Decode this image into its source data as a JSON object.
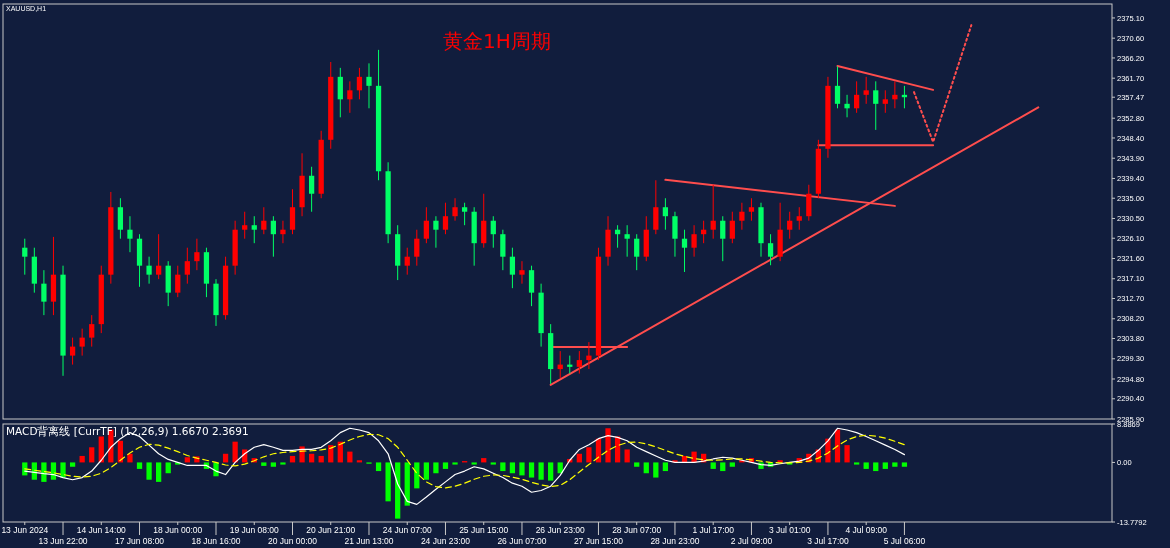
{
  "chart_data": [
    {
      "type": "candlestick",
      "title": "黄金1H周期",
      "subtitle": "XAUUSD,H1",
      "tick_labels": "y",
      "categories": [
        null,
        null,
        null,
        null,
        null,
        null,
        null,
        null,
        null,
        null,
        null,
        null,
        null,
        null,
        null,
        null,
        null,
        null,
        null,
        null,
        null,
        null,
        null,
        null,
        null,
        null,
        null,
        null,
        null,
        null,
        null,
        null,
        null,
        null,
        null,
        null,
        null,
        null,
        null,
        null,
        null,
        null,
        null,
        null,
        null,
        null,
        null,
        null,
        null,
        null,
        null,
        null,
        null,
        null,
        null,
        null,
        null,
        null,
        null,
        null,
        null,
        null,
        null,
        null,
        null,
        null,
        null,
        null,
        null,
        null,
        null,
        null,
        null,
        null,
        null,
        null,
        null,
        null,
        null,
        null,
        null,
        null,
        null,
        null,
        null,
        null,
        null,
        null,
        null,
        null,
        null,
        null,
        null,
        null,
        null,
        null,
        null,
        null,
        null,
        null,
        null,
        null,
        null,
        null,
        null,
        null,
        null,
        null,
        null,
        null,
        null,
        null,
        null,
        null
      ],
      "ohlc": [
        [
          2324,
          2326,
          2318,
          2322
        ],
        [
          2322,
          2324,
          2314,
          2316
        ],
        [
          2316,
          2319,
          2309,
          2312
        ],
        [
          2312,
          2326.4,
          2309,
          2318
        ],
        [
          2318,
          2320,
          2295.5,
          2300
        ],
        [
          2300,
          2304,
          2298,
          2302
        ],
        [
          2302,
          2306,
          2300,
          2304
        ],
        [
          2304,
          2309,
          2302,
          2307
        ],
        [
          2307,
          2320,
          2305,
          2318
        ],
        [
          2318,
          2336.4,
          2316,
          2333
        ],
        [
          2333,
          2335,
          2326,
          2328
        ],
        [
          2328,
          2331,
          2323,
          2326
        ],
        [
          2326,
          2327,
          2315.3,
          2320
        ],
        [
          2320,
          2322,
          2316,
          2318
        ],
        [
          2318,
          2327,
          2317,
          2320
        ],
        [
          2320,
          2321,
          2311,
          2314
        ],
        [
          2314,
          2320,
          2313,
          2318
        ],
        [
          2318,
          2324,
          2316,
          2321
        ],
        [
          2321,
          2326,
          2319,
          2323
        ],
        [
          2323,
          2324,
          2313,
          2316
        ],
        [
          2316,
          2317,
          2306.6,
          2309
        ],
        [
          2309,
          2322,
          2308,
          2320
        ],
        [
          2320,
          2330,
          2318,
          2328
        ],
        [
          2328,
          2332,
          2326,
          2329
        ],
        [
          2329,
          2331,
          2325,
          2328
        ],
        [
          2328,
          2333,
          2327,
          2330
        ],
        [
          2330,
          2331,
          2322,
          2327
        ],
        [
          2327,
          2330,
          2325,
          2328
        ],
        [
          2328,
          2337,
          2327,
          2333
        ],
        [
          2333,
          2345,
          2331,
          2340
        ],
        [
          2340,
          2342,
          2332,
          2336
        ],
        [
          2336,
          2350,
          2335,
          2348
        ],
        [
          2348,
          2365.3,
          2346,
          2362
        ],
        [
          2362,
          2364,
          2353,
          2357
        ],
        [
          2357,
          2361,
          2354,
          2359
        ],
        [
          2359,
          2364,
          2357,
          2362
        ],
        [
          2362,
          2365,
          2355,
          2360
        ],
        [
          2360,
          2368,
          2339,
          2341
        ],
        [
          2341,
          2343,
          2325,
          2327
        ],
        [
          2327,
          2329,
          2316.8,
          2320
        ],
        [
          2320,
          2324,
          2318,
          2322
        ],
        [
          2322,
          2328,
          2320,
          2326
        ],
        [
          2326,
          2333,
          2325,
          2330
        ],
        [
          2330,
          2331,
          2324,
          2328
        ],
        [
          2328,
          2334,
          2327,
          2331
        ],
        [
          2331,
          2335,
          2330,
          2333
        ],
        [
          2333,
          2334,
          2329,
          2332
        ],
        [
          2332,
          2333,
          2320,
          2325
        ],
        [
          2325,
          2336,
          2324,
          2330
        ],
        [
          2330,
          2331,
          2324,
          2327
        ],
        [
          2327,
          2328,
          2319,
          2322
        ],
        [
          2322,
          2324,
          2315,
          2318
        ],
        [
          2318,
          2321,
          2316,
          2319
        ],
        [
          2319,
          2320,
          2311,
          2314
        ],
        [
          2314,
          2316,
          2302,
          2305
        ],
        [
          2305,
          2307,
          2293.7,
          2297
        ],
        [
          2297,
          2301,
          2295,
          2298
        ],
        [
          2298,
          2300,
          2296,
          2297.5
        ],
        [
          2297.5,
          2301,
          2296,
          2299
        ],
        [
          2299,
          2303,
          2297,
          2300
        ],
        [
          2300,
          2324,
          2299,
          2322
        ],
        [
          2322,
          2331,
          2320,
          2328
        ],
        [
          2328,
          2329,
          2324,
          2327
        ],
        [
          2327,
          2329,
          2322,
          2326
        ],
        [
          2326,
          2327,
          2319,
          2322
        ],
        [
          2322,
          2331,
          2321,
          2328
        ],
        [
          2328,
          2339,
          2327,
          2333
        ],
        [
          2333,
          2335,
          2328,
          2331
        ],
        [
          2331,
          2332,
          2322,
          2326
        ],
        [
          2326,
          2328,
          2318.6,
          2324
        ],
        [
          2324,
          2329,
          2322,
          2327
        ],
        [
          2327,
          2330,
          2325,
          2328
        ],
        [
          2328,
          2338,
          2326,
          2330
        ],
        [
          2330,
          2331,
          2321,
          2326
        ],
        [
          2326,
          2332,
          2325,
          2330
        ],
        [
          2330,
          2334,
          2328,
          2332
        ],
        [
          2332,
          2335,
          2330,
          2333
        ],
        [
          2333,
          2334,
          2322,
          2325
        ],
        [
          2325,
          2327,
          2320.1,
          2322
        ],
        [
          2322,
          2334,
          2321,
          2328
        ],
        [
          2328,
          2332,
          2326,
          2330
        ],
        [
          2330,
          2333,
          2328,
          2331
        ],
        [
          2331,
          2338,
          2330,
          2336
        ],
        [
          2336,
          2348,
          2335,
          2346
        ],
        [
          2346,
          2362,
          2344,
          2360
        ],
        [
          2360,
          2364.3,
          2355,
          2356
        ],
        [
          2356,
          2358,
          2353,
          2355
        ],
        [
          2355,
          2361,
          2354,
          2358
        ],
        [
          2358,
          2362,
          2356,
          2359
        ],
        [
          2359,
          2361,
          2350.2,
          2356
        ],
        [
          2356,
          2359,
          2354,
          2357
        ],
        [
          2357,
          2361,
          2355,
          2358
        ],
        [
          2358,
          2360,
          2355,
          2357.47
        ],
        null,
        null,
        null,
        null,
        null,
        null,
        null,
        null,
        null,
        null,
        null,
        null,
        null,
        null,
        null,
        null,
        null,
        null,
        null,
        null,
        null
      ],
      "colors": [
        "#00ff66",
        "#00ff66",
        "#00ff66",
        "#ff0000",
        "#00ff66",
        "#ff0000",
        "#ff0000",
        "#ff0000",
        "#ff0000",
        "#ff0000",
        "#00ff66",
        "#00ff66",
        "#00ff66",
        "#00ff66",
        "#ff0000",
        "#00ff66",
        "#ff0000",
        "#ff0000",
        "#ff0000",
        "#00ff66",
        "#00ff66",
        "#ff0000",
        "#ff0000",
        "#ff0000",
        "#00ff66",
        "#ff0000",
        "#00ff66",
        "#ff0000",
        "#ff0000",
        "#ff0000",
        "#00ff66",
        "#ff0000",
        "#ff0000",
        "#00ff66",
        "#ff0000",
        "#ff0000",
        "#00ff66",
        "#00ff66",
        "#00ff66",
        "#00ff66",
        "#ff0000",
        "#ff0000",
        "#ff0000",
        "#00ff66",
        "#ff0000",
        "#ff0000",
        "#00ff66",
        "#00ff66",
        "#ff0000",
        "#00ff66",
        "#00ff66",
        "#00ff66",
        "#ff0000",
        "#00ff66",
        "#00ff66",
        "#00ff66",
        "#ff0000",
        "#00ff66",
        "#ff0000",
        "#ff0000",
        "#ff0000",
        "#ff0000",
        "#00ff66",
        "#00ff66",
        "#00ff66",
        "#ff0000",
        "#ff0000",
        "#00ff66",
        "#00ff66",
        "#00ff66",
        "#ff0000",
        "#ff0000",
        "#ff0000",
        "#00ff66",
        "#ff0000",
        "#ff0000",
        "#ff0000",
        "#00ff66",
        "#00ff66",
        "#ff0000",
        "#ff0000",
        "#ff0000",
        "#ff0000",
        "#ff0000",
        "#ff0000",
        "#00ff66",
        "#00ff66",
        "#ff0000",
        "#ff0000",
        "#00ff66",
        "#ff0000",
        "#ff0000",
        "#00ff66",
        null,
        null,
        null,
        null,
        null,
        null,
        null,
        null,
        null,
        null,
        null,
        null,
        null,
        null,
        null,
        null,
        null,
        null,
        null,
        null,
        null
      ],
      "series": [
        {
          "type": "line",
          "color": "#ff4d4d",
          "values": [
            null,
            null,
            null,
            null,
            null,
            null,
            null,
            null,
            null,
            null,
            null,
            null,
            null,
            null,
            null,
            null,
            null,
            null,
            null,
            null,
            null,
            null,
            null,
            null,
            null,
            null,
            null,
            null,
            null,
            null,
            null,
            null,
            null,
            null,
            null,
            null,
            null,
            null,
            null,
            null,
            null,
            null,
            null,
            null,
            null,
            null,
            null,
            null,
            null,
            null,
            null,
            null,
            null,
            null,
            null,
            2293.5,
            null,
            null,
            null,
            null,
            null,
            null,
            null,
            null,
            null,
            null,
            null,
            null,
            null,
            null,
            null,
            null,
            null,
            null,
            null,
            null,
            null,
            null,
            null,
            null,
            null,
            null,
            null,
            null,
            null,
            null,
            null,
            null,
            null,
            null,
            null,
            null,
            null,
            null,
            null,
            null,
            null,
            null,
            null,
            null,
            null,
            null,
            null,
            null,
            null,
            null,
            2355.2,
            null,
            null,
            null,
            null,
            null,
            null,
            null
          ]
        },
        {
          "type": "line",
          "color": "#ff4d4d",
          "values": [
            null,
            null,
            null,
            null,
            null,
            null,
            null,
            null,
            null,
            null,
            null,
            null,
            null,
            null,
            null,
            null,
            null,
            null,
            null,
            null,
            null,
            null,
            null,
            null,
            null,
            null,
            null,
            null,
            null,
            null,
            null,
            null,
            null,
            null,
            null,
            null,
            null,
            null,
            null,
            null,
            null,
            null,
            null,
            null,
            null,
            null,
            null,
            null,
            null,
            null,
            null,
            null,
            null,
            null,
            null,
            2301.9,
            null,
            null,
            null,
            null,
            null,
            null,
            null,
            2301.9,
            null,
            null,
            null,
            null,
            null,
            null,
            null,
            null,
            null,
            null,
            null,
            null,
            null,
            null,
            null,
            null,
            null,
            null,
            null,
            null,
            null,
            null,
            null,
            null,
            null,
            null,
            null,
            null,
            null,
            null,
            null,
            null,
            null,
            null,
            null,
            null,
            null,
            null,
            null,
            null,
            null,
            null,
            null,
            null,
            null,
            null,
            null,
            null,
            null,
            null
          ]
        },
        {
          "type": "line",
          "color": "#ff4d4d",
          "values": [
            null,
            null,
            null,
            null,
            null,
            null,
            null,
            null,
            null,
            null,
            null,
            null,
            null,
            null,
            null,
            null,
            null,
            null,
            null,
            null,
            null,
            null,
            null,
            null,
            null,
            null,
            null,
            null,
            null,
            null,
            null,
            null,
            null,
            null,
            null,
            null,
            null,
            null,
            null,
            null,
            null,
            null,
            null,
            null,
            null,
            null,
            null,
            null,
            null,
            null,
            null,
            null,
            null,
            null,
            null,
            null,
            null,
            null,
            null,
            null,
            null,
            null,
            null,
            null,
            null,
            null,
            null,
            2339.1,
            null,
            null,
            null,
            null,
            null,
            null,
            null,
            null,
            null,
            null,
            null,
            null,
            null,
            null,
            null,
            null,
            null,
            null,
            null,
            null,
            null,
            null,
            null,
            2333.3,
            null,
            null,
            null,
            null,
            null,
            null,
            null,
            null,
            null,
            null,
            null,
            null,
            null,
            null,
            null,
            null,
            null,
            null,
            null,
            null,
            null,
            null
          ]
        },
        {
          "type": "line",
          "color": "#ff4d4d",
          "values": [
            null,
            null,
            null,
            null,
            null,
            null,
            null,
            null,
            null,
            null,
            null,
            null,
            null,
            null,
            null,
            null,
            null,
            null,
            null,
            null,
            null,
            null,
            null,
            null,
            null,
            null,
            null,
            null,
            null,
            null,
            null,
            null,
            null,
            null,
            null,
            null,
            null,
            null,
            null,
            null,
            null,
            null,
            null,
            null,
            null,
            null,
            null,
            null,
            null,
            null,
            null,
            null,
            null,
            null,
            null,
            null,
            null,
            null,
            null,
            null,
            null,
            null,
            null,
            null,
            null,
            null,
            null,
            null,
            null,
            null,
            null,
            null,
            null,
            null,
            null,
            null,
            null,
            null,
            null,
            null,
            null,
            null,
            null,
            2346.8,
            null,
            null,
            null,
            null,
            null,
            null,
            null,
            null,
            null,
            null,
            null,
            2346.8,
            null,
            null,
            null,
            null,
            null,
            null,
            null,
            null,
            null,
            null,
            null,
            null,
            null,
            null,
            null,
            null,
            null,
            null
          ]
        },
        {
          "type": "line",
          "color": "#ff4d4d",
          "values": [
            null,
            null,
            null,
            null,
            null,
            null,
            null,
            null,
            null,
            null,
            null,
            null,
            null,
            null,
            null,
            null,
            null,
            null,
            null,
            null,
            null,
            null,
            null,
            null,
            null,
            null,
            null,
            null,
            null,
            null,
            null,
            null,
            null,
            null,
            null,
            null,
            null,
            null,
            null,
            null,
            null,
            null,
            null,
            null,
            null,
            null,
            null,
            null,
            null,
            null,
            null,
            null,
            null,
            null,
            null,
            null,
            null,
            null,
            null,
            null,
            null,
            null,
            null,
            null,
            null,
            null,
            null,
            null,
            null,
            null,
            null,
            null,
            null,
            null,
            null,
            null,
            null,
            null,
            null,
            null,
            null,
            null,
            null,
            null,
            null,
            2364.4,
            null,
            null,
            null,
            null,
            null,
            null,
            null,
            null,
            null,
            2359.1,
            null,
            null,
            null,
            null,
            null,
            null,
            null,
            null,
            null,
            null,
            null,
            null,
            null,
            null,
            null,
            null,
            null,
            null
          ]
        },
        {
          "type": "line",
          "color": "#ff4d4d",
          "line_style": "dotted",
          "values": [
            null,
            null,
            null,
            null,
            null,
            null,
            null,
            null,
            null,
            null,
            null,
            null,
            null,
            null,
            null,
            null,
            null,
            null,
            null,
            null,
            null,
            null,
            null,
            null,
            null,
            null,
            null,
            null,
            null,
            null,
            null,
            null,
            null,
            null,
            null,
            null,
            null,
            null,
            null,
            null,
            null,
            null,
            null,
            null,
            null,
            null,
            null,
            null,
            null,
            null,
            null,
            null,
            null,
            null,
            null,
            null,
            null,
            null,
            null,
            null,
            null,
            null,
            null,
            null,
            null,
            null,
            null,
            null,
            null,
            null,
            null,
            null,
            null,
            null,
            null,
            null,
            null,
            null,
            null,
            null,
            null,
            null,
            null,
            null,
            null,
            null,
            null,
            null,
            null,
            null,
            null,
            null,
            null,
            2358.6,
            null,
            2347.5,
            null,
            null,
            null,
            2373.5,
            null,
            null,
            null,
            null,
            null,
            null,
            null,
            null,
            null,
            null,
            null,
            null,
            null,
            null
          ]
        }
      ],
      "ylim": [
        2285.9,
        2378.2
      ],
      "yticks": [
        {
          "value": 2375.1,
          "label": "2375.10"
        },
        {
          "value": 2370.6,
          "label": "2370.60"
        },
        {
          "value": 2366.2,
          "label": "2366.20"
        },
        {
          "value": 2361.7,
          "label": "2361.70"
        },
        {
          "value": 2357.47,
          "label": "2357.47"
        },
        {
          "value": 2352.8,
          "label": "2352.80"
        },
        {
          "value": 2348.4,
          "label": "2348.40"
        },
        {
          "value": 2343.9,
          "label": "2343.90"
        },
        {
          "value": 2339.4,
          "label": "2339.40"
        },
        {
          "value": 2335,
          "label": "2335.00"
        },
        {
          "value": 2330.5,
          "label": "2330.50"
        },
        {
          "value": 2326.1,
          "label": "2326.10"
        },
        {
          "value": 2321.6,
          "label": "2321.60"
        },
        {
          "value": 2317.1,
          "label": "2317.10"
        },
        {
          "value": 2312.7,
          "label": "2312.70"
        },
        {
          "value": 2308.2,
          "label": "2308.20"
        },
        {
          "value": 2303.8,
          "label": "2303.80"
        },
        {
          "value": 2299.3,
          "label": "2299.30"
        },
        {
          "value": 2294.8,
          "label": "2294.80"
        },
        {
          "value": 2290.4,
          "label": "2290.40"
        },
        {
          "value": 2285.9,
          "label": "2285.90"
        }
      ]
    },
    {
      "type": "bar",
      "title": "MACD背离线 [CurrTF] (12,26,9) 1.6670 2.3691",
      "categories": [
        "13 Jun 2024",
        null,
        null,
        null,
        "13 Jun 22:00",
        null,
        null,
        null,
        "14 Jun 14:00",
        null,
        null,
        null,
        "17 Jun 08:00",
        null,
        null,
        null,
        "18 Jun 00:00",
        null,
        null,
        null,
        "18 Jun 16:00",
        null,
        null,
        null,
        "19 Jun 08:00",
        null,
        null,
        null,
        "20 Jun 00:00",
        null,
        null,
        null,
        "20 Jun 21:00",
        null,
        null,
        null,
        "21 Jun 13:00",
        null,
        null,
        null,
        "24 Jun 07:00",
        null,
        null,
        null,
        "24 Jun 23:00",
        null,
        null,
        null,
        "25 Jun 15:00",
        null,
        null,
        null,
        "26 Jun 07:00",
        null,
        null,
        null,
        "26 Jun 23:00",
        null,
        null,
        null,
        "27 Jun 15:00",
        null,
        null,
        null,
        "28 Jun 07:00",
        null,
        null,
        null,
        "28 Jun 23:00",
        null,
        null,
        null,
        "1 Jul 17:00",
        null,
        null,
        null,
        "2 Jul 09:00",
        null,
        null,
        null,
        "3 Jul 01:00",
        null,
        null,
        null,
        "3 Jul 17:00",
        null,
        null,
        null,
        "4 Jul 09:00",
        null,
        null,
        null,
        "5 Jul 06:00",
        null,
        null,
        null,
        null,
        null,
        null,
        null,
        null,
        null,
        null,
        null,
        null,
        null,
        null,
        null,
        null,
        null,
        null,
        null,
        null,
        null
      ],
      "series": [
        {
          "type": "bar",
          "values": [
            -3,
            -4,
            -4.5,
            -4,
            -3.5,
            -1,
            1.5,
            3.5,
            6,
            7.6,
            5,
            2,
            -1.5,
            -4,
            -4.5,
            -2.5,
            -0.5,
            1.2,
            1.4,
            -1.5,
            -3.2,
            2,
            4.8,
            3,
            1,
            -0.8,
            -1,
            -0.5,
            1.5,
            3.7,
            2,
            1.5,
            4,
            4.8,
            2.5,
            0.5,
            -0.3,
            -2,
            -9,
            -13,
            -10,
            -6,
            -4,
            -2.5,
            -1.5,
            -0.5,
            0.3,
            -0.5,
            1,
            -0.5,
            -2,
            -2.5,
            -3,
            -3.5,
            -4,
            -4.2,
            -2.5,
            0.8,
            2,
            3.5,
            5.5,
            7.9,
            6,
            3,
            -1,
            -2.5,
            -3.5,
            -2,
            0.5,
            1.5,
            2.5,
            2,
            -1.5,
            -2,
            -1,
            0.5,
            1,
            -1.5,
            -1,
            0.5,
            -0.5,
            1,
            2,
            3,
            5.5,
            7.6,
            4,
            -0.5,
            -1.5,
            -2,
            -1.5,
            -1,
            -1,
            null,
            null,
            null,
            null,
            null,
            null,
            null,
            null,
            null,
            null,
            null,
            null,
            null,
            null,
            null,
            null,
            null,
            null,
            null,
            null,
            null
          ],
          "colors": [
            "#00ff00",
            "#00ff00",
            "#00ff00",
            "#00ff00",
            "#00ff00",
            "#00ff00",
            "#ff0000",
            "#ff0000",
            "#ff0000",
            "#ff0000",
            "#ff0000",
            "#ff0000",
            "#00ff00",
            "#00ff00",
            "#00ff00",
            "#00ff00",
            "#00ff00",
            "#ff0000",
            "#ff0000",
            "#00ff00",
            "#00ff00",
            "#ff0000",
            "#ff0000",
            "#ff0000",
            "#ff0000",
            "#00ff00",
            "#00ff00",
            "#00ff00",
            "#ff0000",
            "#ff0000",
            "#ff0000",
            "#ff0000",
            "#ff0000",
            "#ff0000",
            "#ff0000",
            "#ff0000",
            "#00ff00",
            "#00ff00",
            "#00ff00",
            "#00ff00",
            "#00ff00",
            "#00ff00",
            "#00ff00",
            "#00ff00",
            "#00ff00",
            "#00ff00",
            "#ff0000",
            "#00ff00",
            "#ff0000",
            "#00ff00",
            "#00ff00",
            "#00ff00",
            "#00ff00",
            "#00ff00",
            "#00ff00",
            "#00ff00",
            "#00ff00",
            "#ff0000",
            "#ff0000",
            "#ff0000",
            "#ff0000",
            "#ff0000",
            "#ff0000",
            "#ff0000",
            "#00ff00",
            "#00ff00",
            "#00ff00",
            "#00ff00",
            "#ff0000",
            "#ff0000",
            "#ff0000",
            "#ff0000",
            "#00ff00",
            "#00ff00",
            "#00ff00",
            "#ff0000",
            "#ff0000",
            "#00ff00",
            "#00ff00",
            "#ff0000",
            "#00ff00",
            "#ff0000",
            "#ff0000",
            "#ff0000",
            "#ff0000",
            "#ff0000",
            "#ff0000",
            "#00ff00",
            "#00ff00",
            "#00ff00",
            "#00ff00",
            "#00ff00",
            "#00ff00",
            null,
            null,
            null,
            null,
            null,
            null,
            null,
            null,
            null,
            null,
            null,
            null,
            null,
            null,
            null,
            null,
            null,
            null,
            null,
            null,
            null
          ]
        },
        {
          "type": "line",
          "color": "#ffffff",
          "values": [
            -2,
            -2.3,
            -2.6,
            -2.8,
            -3.5,
            -4,
            -3.5,
            -2,
            0.5,
            3.5,
            5.5,
            6.9,
            6,
            4,
            2,
            0.7,
            0,
            -0.7,
            -0.7,
            -0.7,
            -2,
            -2.8,
            0,
            2,
            3.5,
            4.1,
            3.5,
            2.8,
            2.8,
            3,
            3,
            3.5,
            5,
            6.9,
            7.9,
            7.5,
            6.9,
            5,
            2,
            -5,
            -9,
            -9.7,
            -8,
            -6.2,
            -4.5,
            -2.8,
            -2,
            -1,
            -1.5,
            -2.5,
            -3.5,
            -4.8,
            -5.5,
            -6.9,
            -6.5,
            -5.5,
            -3,
            0.5,
            3,
            4.1,
            5.5,
            6.2,
            5.8,
            5,
            3.5,
            2.5,
            1.5,
            0.5,
            0,
            0,
            0,
            0.3,
            0.8,
            1.2,
            1,
            0.5,
            0,
            -0.5,
            -0.7,
            -0.3,
            0,
            0.3,
            1,
            2.8,
            5,
            7.9,
            7.5,
            6.9,
            6,
            5,
            4,
            3,
            1.8,
            null,
            null,
            null,
            null,
            null,
            null,
            null,
            null,
            null,
            null,
            null,
            null,
            null,
            null,
            null,
            null,
            null,
            null,
            null,
            null,
            null
          ]
        },
        {
          "type": "line",
          "color": "#ffff00",
          "line_style": "dashed",
          "values": [
            -1.5,
            -1.8,
            -2.1,
            -2.4,
            -2.8,
            -3.2,
            -3.4,
            -3.2,
            -2.5,
            -1.2,
            0.5,
            2.2,
            3.5,
            4.2,
            4,
            3.3,
            2.5,
            1.6,
            1,
            0.5,
            0,
            -0.6,
            -0.8,
            -0.4,
            0.4,
            1.3,
            2,
            2.3,
            2.5,
            2.6,
            2.7,
            2.9,
            3.3,
            4.2,
            5.2,
            6,
            6.5,
            6.4,
            5.5,
            3.5,
            0.5,
            -2.5,
            -4.5,
            -5.6,
            -5.9,
            -5.5,
            -4.8,
            -3.9,
            -3.2,
            -2.9,
            -3,
            -3.4,
            -3.9,
            -4.6,
            -5.2,
            -5.6,
            -5.3,
            -4,
            -2.2,
            -0.5,
            1.2,
            2.8,
            3.9,
            4.6,
            4.7,
            4.3,
            3.6,
            2.8,
            2,
            1.4,
            0.9,
            0.6,
            0.5,
            0.6,
            0.8,
            0.8,
            0.6,
            0.3,
            0,
            -0.1,
            -0.1,
            0,
            0.3,
            1,
            2.2,
            3.8,
            5.2,
            6,
            6.3,
            6.1,
            5.6,
            4.9,
            4.1,
            null,
            null,
            null,
            null,
            null,
            null,
            null,
            null,
            null,
            null,
            null,
            null,
            null,
            null,
            null,
            null,
            null,
            null,
            null,
            null,
            null
          ]
        }
      ],
      "ylim": [
        -13.7792,
        8.8869
      ],
      "yticks": [
        {
          "value": 8.8869,
          "label": "8.8869"
        },
        {
          "value": 0,
          "label": "0.00"
        },
        {
          "value": -13.7792,
          "label": "-13.7792"
        }
      ]
    }
  ]
}
